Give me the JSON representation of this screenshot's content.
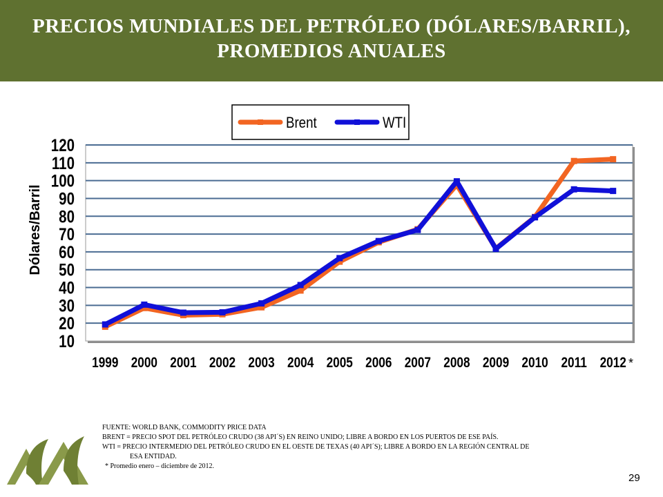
{
  "slide": {
    "title_line1": "PRECIOS MUNDIALES DEL PETRÓLEO (DÓLARES/BARRIL),",
    "title_line2": "PROMEDIOS ANUALES",
    "page_number": "29",
    "header_color": "#5f7130"
  },
  "chart_data": {
    "type": "line",
    "x": [
      "1999",
      "2000",
      "2001",
      "2002",
      "2003",
      "2004",
      "2005",
      "2006",
      "2007",
      "2008",
      "2009",
      "2010",
      "2011",
      "2012"
    ],
    "x_suffix": "*",
    "ylabel": "Dólares/Barril",
    "yticks": [
      10,
      20,
      30,
      40,
      50,
      60,
      70,
      80,
      90,
      100,
      110,
      120
    ],
    "ylim": [
      10,
      120
    ],
    "grid": true,
    "legend_position": "top-center",
    "series": [
      {
        "name": "Brent",
        "color": "#f26522",
        "values": [
          18,
          28.5,
          24.5,
          25,
          28.9,
          38.3,
          54.5,
          65.4,
          72.7,
          97.6,
          61.9,
          79.6,
          111,
          112
        ]
      },
      {
        "name": "WTI",
        "color": "#1010d8",
        "values": [
          19.3,
          30.4,
          25.9,
          26.1,
          31.1,
          41.4,
          56.5,
          66.1,
          72.3,
          99.6,
          61.7,
          79.4,
          95.1,
          94.2
        ]
      }
    ]
  },
  "notes": {
    "fuente": "FUENTE: WORLD BANK, COMMODITY PRICE DATA",
    "brent": "BRENT = PRECIO SPOT DEL PETRÓLEO CRUDO (38 API´S) EN REINO UNIDO; LIBRE A BORDO EN LOS PUERTOS DE ESE PAÍS.",
    "wti_1": "WTI = PRECIO INTERMEDIO DEL PETRÓLEO CRUDO EN EL OESTE DE TEXAS (40 API´S); LIBRE A BORDO EN LA REGIÓN CENTRAL DE",
    "wti_2": "ESA      ENTIDAD.",
    "promedio": "* Promedio enero – diciembre de 2012."
  }
}
